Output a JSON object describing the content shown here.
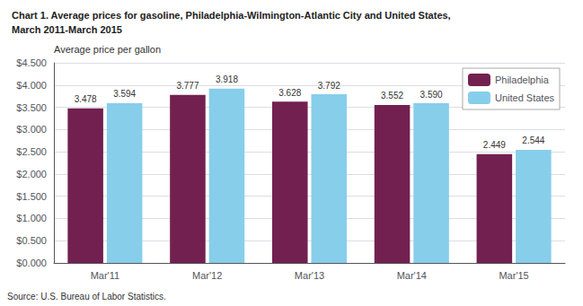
{
  "chart_data": {
    "type": "bar",
    "title": "Chart 1. Average prices for gasoline, Philadelphia-Wilmington-Atlantic City and United States,",
    "subtitle": "March 2011-March 2015",
    "ylabel": "Average price per gallon",
    "source": "Source: U.S. Bureau of Labor Statistics.",
    "categories": [
      "Mar'11",
      "Mar'12",
      "Mar'13",
      "Mar'14",
      "Mar'15"
    ],
    "series": [
      {
        "name": "Philadelphia",
        "color": "#722050",
        "values": [
          3.478,
          3.777,
          3.628,
          3.552,
          2.449
        ],
        "value_labels": [
          "3.478",
          "3.777",
          "3.628",
          "3.552",
          "2.449"
        ]
      },
      {
        "name": "United States",
        "color": "#87CEEB",
        "values": [
          3.594,
          3.918,
          3.792,
          3.59,
          2.544
        ],
        "value_labels": [
          "3.594",
          "3.918",
          "3.792",
          "3.590",
          "2.544"
        ]
      }
    ],
    "ylim": [
      0,
      4.5
    ],
    "yticks": [
      {
        "value": 0.0,
        "label": "$0.000"
      },
      {
        "value": 0.5,
        "label": "$0.500"
      },
      {
        "value": 1.0,
        "label": "$1.000"
      },
      {
        "value": 1.5,
        "label": "$1.500"
      },
      {
        "value": 2.0,
        "label": "$2.000"
      },
      {
        "value": 2.5,
        "label": "$2.500"
      },
      {
        "value": 3.0,
        "label": "$3.000"
      },
      {
        "value": 3.5,
        "label": "$3.500"
      },
      {
        "value": 4.0,
        "label": "$4.000"
      },
      {
        "value": 4.5,
        "label": "$4.500"
      }
    ],
    "grid": true,
    "legend": "upper right",
    "data_labels": true
  }
}
